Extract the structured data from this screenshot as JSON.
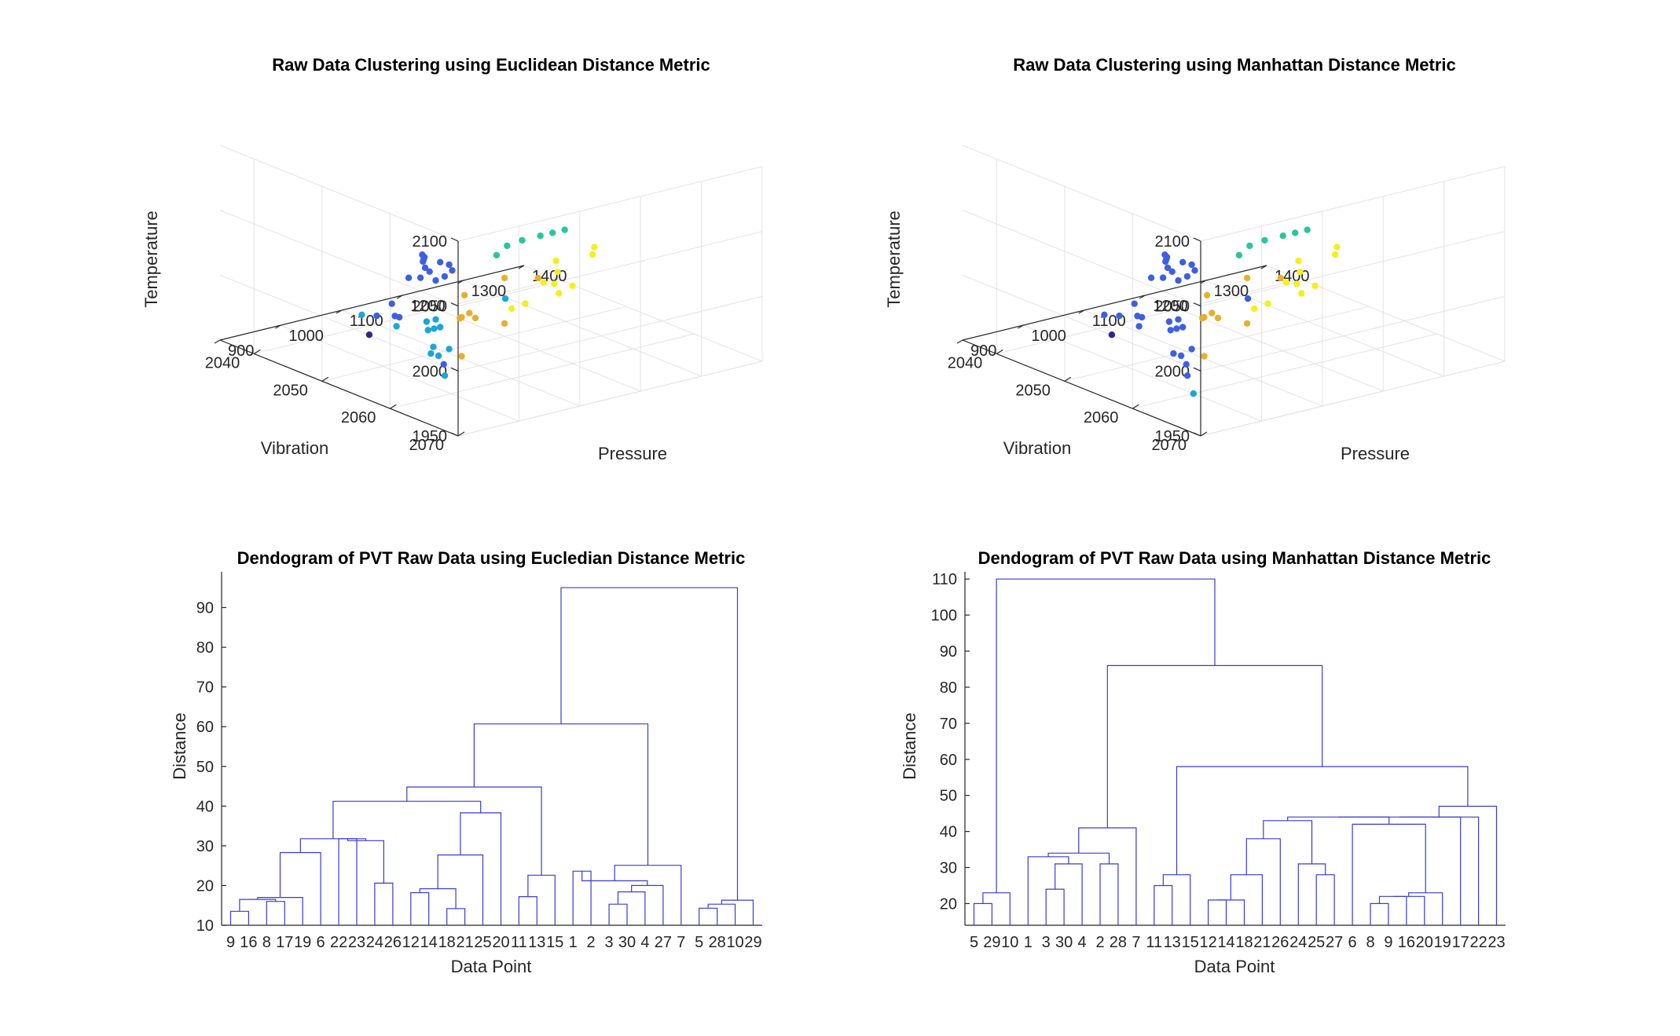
{
  "chart_data": [
    {
      "type": "scatter",
      "title": "Raw Data Clustering using Euclidean Distance Metric",
      "xlabel": "Pressure",
      "ylabel": "Vibration",
      "zlabel": "Temperature",
      "xlim": [
        900,
        1400
      ],
      "ylim": [
        2035,
        2070
      ],
      "zlim": [
        1950,
        2100
      ],
      "xticks": [
        "900",
        "1000",
        "1100",
        "1200",
        "1300",
        "1400"
      ],
      "yticks": [
        "2040",
        "2050",
        "2060",
        "2070"
      ],
      "zticks": [
        "1950",
        "2000",
        "2050",
        "2100"
      ],
      "grid": true,
      "cluster_colors": {
        "c1": "#3f5fe0",
        "c2": "#2cc4a0",
        "c3": "#1ba6d6",
        "c4": "#e5b02e",
        "c5": "#f5ef1e",
        "c6": "#2a2a8c"
      },
      "points": [
        {
          "x": 930,
          "y": 2066,
          "z": 2070,
          "c": "c1"
        },
        {
          "x": 935,
          "y": 2066,
          "z": 2065,
          "c": "c1"
        },
        {
          "x": 945,
          "y": 2064,
          "z": 2055,
          "c": "c1"
        },
        {
          "x": 960,
          "y": 2062,
          "z": 2060,
          "c": "c1"
        },
        {
          "x": 950,
          "y": 2060,
          "z": 2045,
          "c": "c1"
        },
        {
          "x": 965,
          "y": 2060,
          "z": 2048,
          "c": "c1"
        },
        {
          "x": 980,
          "y": 2058,
          "z": 2045,
          "c": "c1"
        },
        {
          "x": 990,
          "y": 2057,
          "z": 2050,
          "c": "c1"
        },
        {
          "x": 1000,
          "y": 2056,
          "z": 2045,
          "c": "c1"
        },
        {
          "x": 975,
          "y": 2060,
          "z": 2040,
          "c": "c1"
        },
        {
          "x": 1010,
          "y": 2055,
          "z": 2040,
          "c": "c1"
        },
        {
          "x": 1020,
          "y": 2054,
          "z": 2042,
          "c": "c1"
        },
        {
          "x": 1020,
          "y": 2052,
          "z": 2020,
          "c": "c1"
        },
        {
          "x": 960,
          "y": 2056,
          "z": 2005,
          "c": "c1"
        },
        {
          "x": 975,
          "y": 2054,
          "z": 2000,
          "c": "c1"
        },
        {
          "x": 990,
          "y": 2050,
          "z": 1990,
          "c": "c1"
        },
        {
          "x": 970,
          "y": 2054,
          "z": 2010,
          "c": "c1"
        },
        {
          "x": 1100,
          "y": 2050,
          "z": 1940,
          "c": "c1"
        },
        {
          "x": 1050,
          "y": 2066,
          "z": 2075,
          "c": "c2"
        },
        {
          "x": 1080,
          "y": 2066,
          "z": 2075,
          "c": "c2"
        },
        {
          "x": 1100,
          "y": 2066,
          "z": 2075,
          "c": "c2"
        },
        {
          "x": 1120,
          "y": 2066,
          "z": 2075,
          "c": "c2"
        },
        {
          "x": 1070,
          "y": 2062,
          "z": 2060,
          "c": "c2"
        },
        {
          "x": 1075,
          "y": 2060,
          "z": 2048,
          "c": "c2"
        },
        {
          "x": 1000,
          "y": 2068,
          "z": 2040,
          "c": "c3"
        },
        {
          "x": 960,
          "y": 2062,
          "z": 2010,
          "c": "c3"
        },
        {
          "x": 900,
          "y": 2066,
          "z": 2005,
          "c": "c3"
        },
        {
          "x": 930,
          "y": 2066,
          "z": 2005,
          "c": "c3"
        },
        {
          "x": 940,
          "y": 2062,
          "z": 2010,
          "c": "c3"
        },
        {
          "x": 950,
          "y": 2062,
          "z": 2010,
          "c": "c3"
        },
        {
          "x": 960,
          "y": 2060,
          "z": 2010,
          "c": "c3"
        },
        {
          "x": 975,
          "y": 2060,
          "z": 2010,
          "c": "c3"
        },
        {
          "x": 935,
          "y": 2064,
          "z": 1995,
          "c": "c3"
        },
        {
          "x": 1000,
          "y": 2052,
          "z": 1985,
          "c": "c3"
        },
        {
          "x": 1010,
          "y": 2046,
          "z": 1980,
          "c": "c3"
        },
        {
          "x": 990,
          "y": 2060,
          "z": 1965,
          "c": "c3"
        },
        {
          "x": 1150,
          "y": 2044,
          "z": 1935,
          "c": "c3"
        },
        {
          "x": 1000,
          "y": 2062,
          "z": 2030,
          "c": "c4"
        },
        {
          "x": 970,
          "y": 2064,
          "z": 2020,
          "c": "c4"
        },
        {
          "x": 1040,
          "y": 2058,
          "z": 2000,
          "c": "c4"
        },
        {
          "x": 1075,
          "y": 2056,
          "z": 1995,
          "c": "c4"
        },
        {
          "x": 1085,
          "y": 2056,
          "z": 1990,
          "c": "c4"
        },
        {
          "x": 1200,
          "y": 2050,
          "z": 1995,
          "c": "c4"
        },
        {
          "x": 1040,
          "y": 2058,
          "z": 1970,
          "c": "c4"
        },
        {
          "x": 1200,
          "y": 2050,
          "z": 1960,
          "c": "c4"
        },
        {
          "x": 1300,
          "y": 2046,
          "z": 1975,
          "c": "c4"
        },
        {
          "x": 1100,
          "y": 2062,
          "z": 2012,
          "c": "c5"
        },
        {
          "x": 1130,
          "y": 2062,
          "z": 2025,
          "c": "c5"
        },
        {
          "x": 1100,
          "y": 2060,
          "z": 2004,
          "c": "c5"
        },
        {
          "x": 1170,
          "y": 2060,
          "z": 2015,
          "c": "c5"
        },
        {
          "x": 1200,
          "y": 2060,
          "z": 2010,
          "c": "c5"
        },
        {
          "x": 1200,
          "y": 2058,
          "z": 2000,
          "c": "c5"
        },
        {
          "x": 1220,
          "y": 2056,
          "z": 2010,
          "c": "c5"
        },
        {
          "x": 1240,
          "y": 2054,
          "z": 2012,
          "c": "c5"
        },
        {
          "x": 1300,
          "y": 2054,
          "z": 2010,
          "c": "c5"
        },
        {
          "x": 1370,
          "y": 2048,
          "z": 1995,
          "c": "c5"
        },
        {
          "x": 1000,
          "y": 2048,
          "z": 1970,
          "c": "c6"
        }
      ]
    },
    {
      "type": "scatter",
      "title": "Raw Data Clustering using Manhattan Distance Metric",
      "xlabel": "Pressure",
      "ylabel": "Vibration",
      "zlabel": "Temperature",
      "xlim": [
        900,
        1400
      ],
      "ylim": [
        2035,
        2070
      ],
      "zlim": [
        1950,
        2100
      ],
      "xticks": [
        "900",
        "1000",
        "1100",
        "1200",
        "1300",
        "1400"
      ],
      "yticks": [
        "2040",
        "2050",
        "2060",
        "2070"
      ],
      "zticks": [
        "1950",
        "2000",
        "2050",
        "2100"
      ],
      "grid": true,
      "cluster_colors": {
        "c1": "#3f5fe0",
        "c2": "#2cc4a0",
        "c3": "#1ba6d6",
        "c4": "#e5b02e",
        "c5": "#f5ef1e",
        "c6": "#2a2a8c"
      },
      "points": [
        {
          "x": 930,
          "y": 2066,
          "z": 2070,
          "c": "c1"
        },
        {
          "x": 935,
          "y": 2066,
          "z": 2065,
          "c": "c1"
        },
        {
          "x": 945,
          "y": 2064,
          "z": 2055,
          "c": "c1"
        },
        {
          "x": 960,
          "y": 2062,
          "z": 2060,
          "c": "c1"
        },
        {
          "x": 950,
          "y": 2060,
          "z": 2045,
          "c": "c1"
        },
        {
          "x": 965,
          "y": 2060,
          "z": 2048,
          "c": "c1"
        },
        {
          "x": 980,
          "y": 2058,
          "z": 2045,
          "c": "c1"
        },
        {
          "x": 990,
          "y": 2057,
          "z": 2050,
          "c": "c1"
        },
        {
          "x": 1000,
          "y": 2056,
          "z": 2045,
          "c": "c1"
        },
        {
          "x": 975,
          "y": 2060,
          "z": 2040,
          "c": "c1"
        },
        {
          "x": 1010,
          "y": 2055,
          "z": 2040,
          "c": "c1"
        },
        {
          "x": 1020,
          "y": 2054,
          "z": 2042,
          "c": "c1"
        },
        {
          "x": 1020,
          "y": 2052,
          "z": 2020,
          "c": "c1"
        },
        {
          "x": 960,
          "y": 2056,
          "z": 2005,
          "c": "c1"
        },
        {
          "x": 975,
          "y": 2054,
          "z": 2000,
          "c": "c1"
        },
        {
          "x": 990,
          "y": 2050,
          "z": 1990,
          "c": "c1"
        },
        {
          "x": 970,
          "y": 2054,
          "z": 2010,
          "c": "c1"
        },
        {
          "x": 1100,
          "y": 2050,
          "z": 1940,
          "c": "c1"
        },
        {
          "x": 1000,
          "y": 2068,
          "z": 2040,
          "c": "c1"
        },
        {
          "x": 960,
          "y": 2062,
          "z": 2010,
          "c": "c1"
        },
        {
          "x": 900,
          "y": 2066,
          "z": 2005,
          "c": "c1"
        },
        {
          "x": 930,
          "y": 2066,
          "z": 2005,
          "c": "c1"
        },
        {
          "x": 940,
          "y": 2062,
          "z": 2010,
          "c": "c1"
        },
        {
          "x": 950,
          "y": 2062,
          "z": 2010,
          "c": "c1"
        },
        {
          "x": 960,
          "y": 2060,
          "z": 2010,
          "c": "c1"
        },
        {
          "x": 975,
          "y": 2060,
          "z": 2010,
          "c": "c1"
        },
        {
          "x": 935,
          "y": 2064,
          "z": 1995,
          "c": "c1"
        },
        {
          "x": 1000,
          "y": 2052,
          "z": 1985,
          "c": "c1"
        },
        {
          "x": 1010,
          "y": 2046,
          "z": 1980,
          "c": "c1"
        },
        {
          "x": 990,
          "y": 2060,
          "z": 1965,
          "c": "c1"
        },
        {
          "x": 1050,
          "y": 2066,
          "z": 2075,
          "c": "c2"
        },
        {
          "x": 1080,
          "y": 2066,
          "z": 2075,
          "c": "c2"
        },
        {
          "x": 1100,
          "y": 2066,
          "z": 2075,
          "c": "c2"
        },
        {
          "x": 1120,
          "y": 2066,
          "z": 2075,
          "c": "c2"
        },
        {
          "x": 1070,
          "y": 2062,
          "z": 2060,
          "c": "c2"
        },
        {
          "x": 1075,
          "y": 2060,
          "z": 2048,
          "c": "c2"
        },
        {
          "x": 1000,
          "y": 2060,
          "z": 1950,
          "c": "c3"
        },
        {
          "x": 1000,
          "y": 2062,
          "z": 2030,
          "c": "c4"
        },
        {
          "x": 970,
          "y": 2064,
          "z": 2020,
          "c": "c4"
        },
        {
          "x": 1040,
          "y": 2058,
          "z": 2000,
          "c": "c4"
        },
        {
          "x": 1075,
          "y": 2056,
          "z": 1995,
          "c": "c4"
        },
        {
          "x": 1085,
          "y": 2056,
          "z": 1990,
          "c": "c4"
        },
        {
          "x": 1200,
          "y": 2050,
          "z": 1995,
          "c": "c4"
        },
        {
          "x": 1040,
          "y": 2058,
          "z": 1970,
          "c": "c4"
        },
        {
          "x": 1200,
          "y": 2050,
          "z": 1960,
          "c": "c4"
        },
        {
          "x": 1300,
          "y": 2046,
          "z": 1975,
          "c": "c4"
        },
        {
          "x": 1100,
          "y": 2062,
          "z": 2012,
          "c": "c5"
        },
        {
          "x": 1130,
          "y": 2062,
          "z": 2025,
          "c": "c5"
        },
        {
          "x": 1100,
          "y": 2060,
          "z": 2004,
          "c": "c5"
        },
        {
          "x": 1170,
          "y": 2060,
          "z": 2015,
          "c": "c5"
        },
        {
          "x": 1200,
          "y": 2060,
          "z": 2010,
          "c": "c5"
        },
        {
          "x": 1200,
          "y": 2058,
          "z": 2000,
          "c": "c5"
        },
        {
          "x": 1220,
          "y": 2056,
          "z": 2010,
          "c": "c5"
        },
        {
          "x": 1240,
          "y": 2054,
          "z": 2012,
          "c": "c5"
        },
        {
          "x": 1300,
          "y": 2054,
          "z": 2010,
          "c": "c5"
        },
        {
          "x": 1370,
          "y": 2048,
          "z": 1995,
          "c": "c5"
        },
        {
          "x": 1000,
          "y": 2048,
          "z": 1970,
          "c": "c6"
        }
      ]
    },
    {
      "type": "dendrogram",
      "title": "Dendogram of PVT Raw Data using Eucledian Distance Metric",
      "xlabel": "Data Point",
      "ylabel": "Distance",
      "ylim": [
        10,
        99
      ],
      "yticks": [
        10,
        20,
        30,
        40,
        50,
        60,
        70,
        80,
        90
      ],
      "leaves": [
        "9",
        "16",
        "8",
        "17",
        "19",
        "6",
        "22",
        "23",
        "24",
        "26",
        "12",
        "14",
        "18",
        "21",
        "25",
        "20",
        "11",
        "13",
        "15",
        "1",
        "2",
        "3",
        "30",
        "4",
        "27",
        "7",
        "5",
        "28",
        "10",
        "29"
      ],
      "merges": [
        [
          "L0",
          "L1",
          13.5
        ],
        [
          "L2",
          "L3",
          16.0
        ],
        [
          "N0",
          "N1",
          16.5
        ],
        [
          "L4",
          "N2",
          17.0
        ],
        [
          "L5",
          "N3",
          28.3
        ],
        [
          "L6",
          "L7",
          31.8
        ],
        [
          "L8",
          "L9",
          20.6
        ],
        [
          "N5",
          "N6",
          31.3
        ],
        [
          "N4",
          "N7",
          31.8
        ],
        [
          "L10",
          "L11",
          18.2
        ],
        [
          "L12",
          "L13",
          14.2
        ],
        [
          "N9",
          "N10",
          19.2
        ],
        [
          "L14",
          "N11",
          27.7
        ],
        [
          "L15",
          "N12",
          38.3
        ],
        [
          "N8",
          "N13",
          41.2
        ],
        [
          "L16",
          "L17",
          17.2
        ],
        [
          "L18",
          "N15",
          22.6
        ],
        [
          "N14",
          "N16",
          44.8
        ],
        [
          "L19",
          "L20",
          23.6
        ],
        [
          "L21",
          "L22",
          15.3
        ],
        [
          "L23",
          "N19",
          18.4
        ],
        [
          "L24",
          "N20",
          20.0
        ],
        [
          "N18",
          "N21",
          21.2
        ],
        [
          "L25",
          "N22",
          25.1
        ],
        [
          "N17",
          "N23",
          60.7
        ],
        [
          "L26",
          "L27",
          14.3
        ],
        [
          "N25",
          "L28",
          15.3
        ],
        [
          "N26",
          "L29",
          16.3
        ],
        [
          "N24",
          "N27",
          95.0
        ]
      ]
    },
    {
      "type": "dendrogram",
      "title": "Dendogram of PVT Raw Data using Manhattan Distance Metric",
      "xlabel": "Data Point",
      "ylabel": "Distance",
      "ylim": [
        14,
        112
      ],
      "yticks": [
        20,
        30,
        40,
        50,
        60,
        70,
        80,
        90,
        100,
        110
      ],
      "leaves": [
        "5",
        "29",
        "10",
        "1",
        "3",
        "30",
        "4",
        "2",
        "28",
        "7",
        "11",
        "13",
        "15",
        "12",
        "14",
        "18",
        "21",
        "26",
        "24",
        "25",
        "27",
        "6",
        "8",
        "9",
        "16",
        "20",
        "19",
        "17",
        "22",
        "23"
      ],
      "merges": [
        [
          "L0",
          "L1",
          20.0
        ],
        [
          "N0",
          "L2",
          23.0
        ],
        [
          "L4",
          "L5",
          24.0
        ],
        [
          "N2",
          "L6",
          31.0
        ],
        [
          "L3",
          "N3",
          33.0
        ],
        [
          "L7",
          "L8",
          31.0
        ],
        [
          "N4",
          "N5",
          34.0
        ],
        [
          "L9",
          "N6",
          41.0
        ],
        [
          "L10",
          "L11",
          25.0
        ],
        [
          "L12",
          "N8",
          28.0
        ],
        [
          "L13",
          "L14",
          21.0
        ],
        [
          "N10",
          "L15",
          21.0
        ],
        [
          "N11",
          "L16",
          28.0
        ],
        [
          "L17",
          "N12",
          38.0
        ],
        [
          "L19",
          "L20",
          28.0
        ],
        [
          "N14",
          "L18",
          31.0
        ],
        [
          "N13",
          "N15",
          43.0
        ],
        [
          "L22",
          "L23",
          20.0
        ],
        [
          "N17",
          "L24",
          22.0
        ],
        [
          "N18",
          "L25",
          22.0
        ],
        [
          "N19",
          "L26",
          23.0
        ],
        [
          "L21",
          "N20",
          42.0
        ],
        [
          "N16",
          "N21",
          44.0
        ],
        [
          "L27",
          "N22",
          44.0
        ],
        [
          "N23",
          "L28",
          44.0
        ],
        [
          "N24",
          "L29",
          47.0
        ],
        [
          "N9",
          "N25",
          58.0
        ],
        [
          "N7",
          "N26",
          86.0
        ],
        [
          "N1",
          "N27",
          110.0
        ]
      ]
    }
  ]
}
